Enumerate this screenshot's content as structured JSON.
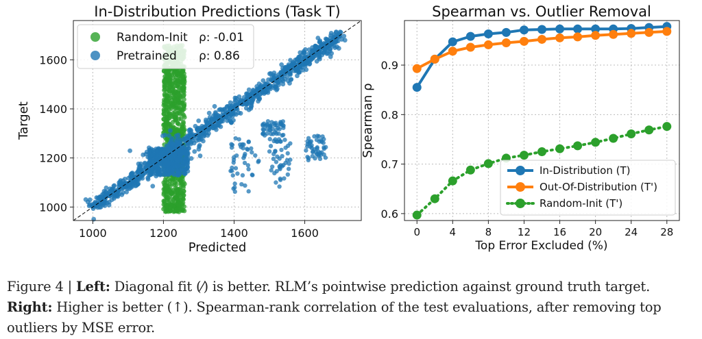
{
  "chart_data": [
    {
      "type": "scatter",
      "title": "In-Distribution Predictions (Task T)",
      "xlabel": "Predicted",
      "ylabel": "Target",
      "xlim": [
        945,
        1760
      ],
      "ylim": [
        945,
        1760
      ],
      "xticks": [
        1000,
        1200,
        1400,
        1600
      ],
      "yticks": [
        1000,
        1200,
        1400,
        1600
      ],
      "grid": true,
      "legend_position": "upper-left",
      "reference_line": "diagonal y = x (dashed black)",
      "series": [
        {
          "name": "Random-Init",
          "stat_label": "ρ: -0.01",
          "color": "#2ca02c",
          "description": "predictions concentrated in a narrow vertical band near Predicted ≈ 1200–1260 spanning Target ≈ 980–1660",
          "band_x": [
            1200,
            1260
          ],
          "band_y": [
            980,
            1660
          ]
        },
        {
          "name": "Pretrained",
          "stat_label": "ρ: 0.86",
          "color": "#1f77b4",
          "description": "points lie mostly along the diagonal from ~1000 to ~1700, with off-diagonal clusters near Predicted 1400–1650 at Target 1050–1300",
          "diagonal_range": [
            1000,
            1700
          ],
          "off_diagonal_clusters": [
            {
              "x": [
                1390,
                1470
              ],
              "y": [
                1050,
                1280
              ]
            },
            {
              "x": [
                1500,
                1560
              ],
              "y": [
                1080,
                1280
              ]
            },
            {
              "x": [
                1600,
                1660
              ],
              "y": [
                1190,
                1290
              ]
            },
            {
              "x": [
                1480,
                1540
              ],
              "y": [
                1290,
                1350
              ]
            }
          ]
        }
      ]
    },
    {
      "type": "line",
      "title": "Spearman vs. Outlier Removal",
      "xlabel": "Top Error Excluded (%)",
      "ylabel": "Spearman ρ",
      "xlim": [
        -1.4,
        29.4
      ],
      "ylim": [
        0.586,
        0.99
      ],
      "xticks": [
        0,
        4,
        8,
        12,
        16,
        20,
        24,
        28
      ],
      "yticks": [
        0.6,
        0.7,
        0.8,
        0.9
      ],
      "grid": true,
      "legend_position": "lower-right",
      "x": [
        0,
        2,
        4,
        6,
        8,
        10,
        12,
        14,
        16,
        18,
        20,
        22,
        24,
        26,
        28
      ],
      "series": [
        {
          "name": "In-Distribution (T)",
          "color": "#1f77b4",
          "line_style": "solid",
          "values": [
            0.855,
            0.912,
            0.947,
            0.958,
            0.963,
            0.966,
            0.971,
            0.972,
            0.973,
            0.973,
            0.973,
            0.973,
            0.974,
            0.976,
            0.978
          ]
        },
        {
          "name": "Out-Of-Distribution (T')",
          "color": "#ff7f0e",
          "line_style": "solid",
          "values": [
            0.893,
            0.912,
            0.928,
            0.936,
            0.941,
            0.945,
            0.948,
            0.952,
            0.955,
            0.957,
            0.96,
            0.962,
            0.964,
            0.966,
            0.968
          ]
        },
        {
          "name": "Random-Init (T')",
          "color": "#2ca02c",
          "line_style": "dotted",
          "values": [
            0.597,
            0.63,
            0.666,
            0.688,
            0.701,
            0.712,
            0.718,
            0.725,
            0.731,
            0.737,
            0.744,
            0.752,
            0.761,
            0.769,
            0.776
          ]
        }
      ]
    }
  ],
  "caption": {
    "prefix": "Figure 4 | ",
    "left_label": "Left:",
    "left_text": " Diagonal fit (⁄) is better. RLM’s pointwise prediction against ground truth target.",
    "right_label": "Right:",
    "right_text": " Higher is better (↑). Spearman-rank correlation of the test evaluations, after removing top outliers by MSE error."
  }
}
